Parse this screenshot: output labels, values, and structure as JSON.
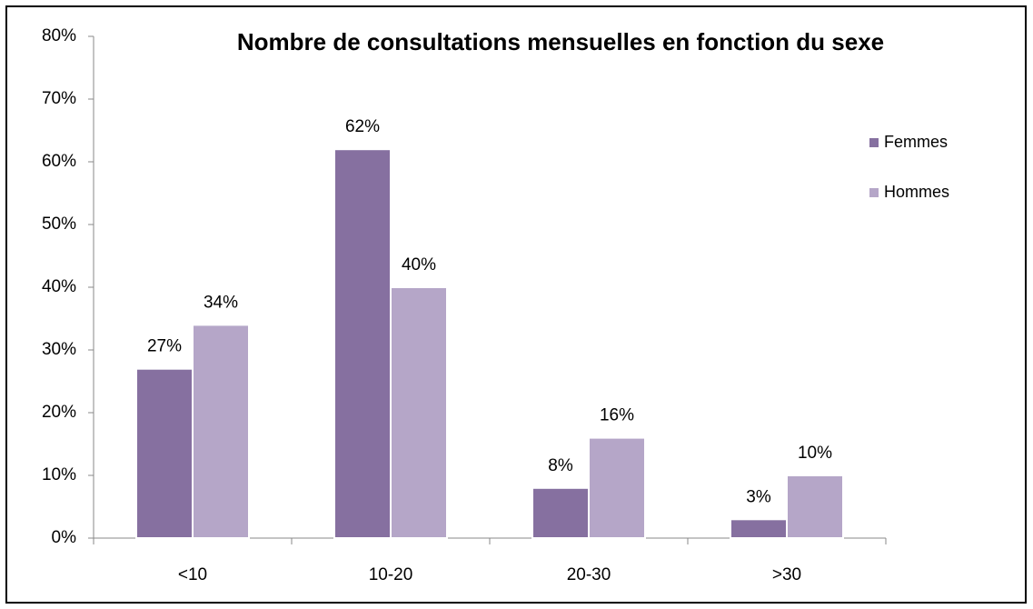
{
  "chart_data": {
    "type": "bar",
    "title": "Nombre de consultations mensuelles en fonction du sexe",
    "categories": [
      "<10",
      "10-20",
      "20-30",
      ">30"
    ],
    "series": [
      {
        "name": "Femmes",
        "color": "#8670a0",
        "values": [
          27,
          62,
          8,
          3
        ],
        "value_labels": [
          "27%",
          "62%",
          "8%",
          "3%"
        ]
      },
      {
        "name": "Hommes",
        "color": "#b5a6c8",
        "values": [
          34,
          40,
          16,
          10
        ],
        "value_labels": [
          "34%",
          "40%",
          "16%",
          "10%"
        ]
      }
    ],
    "ylim": [
      0,
      80
    ],
    "yticks": [
      {
        "value": 0,
        "label": "0%"
      },
      {
        "value": 10,
        "label": "10%"
      },
      {
        "value": 20,
        "label": "20%"
      },
      {
        "value": 30,
        "label": "30%"
      },
      {
        "value": 40,
        "label": "40%"
      },
      {
        "value": 50,
        "label": "50%"
      },
      {
        "value": 60,
        "label": "60%"
      },
      {
        "value": 70,
        "label": "70%"
      },
      {
        "value": 80,
        "label": "80%"
      }
    ],
    "grid": false,
    "legend": "right"
  }
}
